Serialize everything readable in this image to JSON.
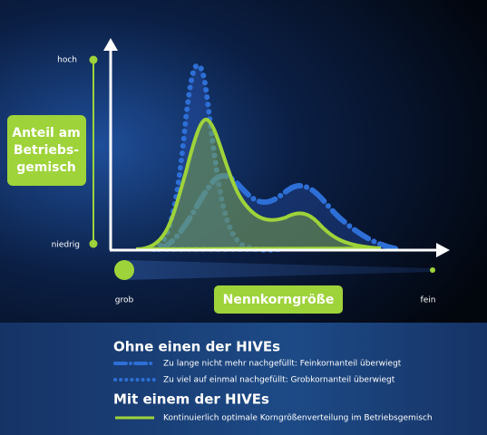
{
  "y_axis": {
    "high": "hoch",
    "low": "niedrig",
    "title_lines": [
      "Anteil am",
      "Betriebs-",
      "gemisch"
    ]
  },
  "x_axis": {
    "left": "grob",
    "right": "fein",
    "title": "Nennkorngröße"
  },
  "legend": {
    "without_title": "Ohne einen der HIVEs",
    "without_items": [
      "Zu lange nicht mehr nachgefüllt: Feinkornanteil überwiegt",
      "Zu viel auf einmal nachgefüllt: Grobkornanteil überwiegt"
    ],
    "with_title": "Mit einem der HIVEs",
    "with_items": [
      "Kontinuierlich optimale Korngrößenverteilung im Betriebsgemisch"
    ]
  }
}
